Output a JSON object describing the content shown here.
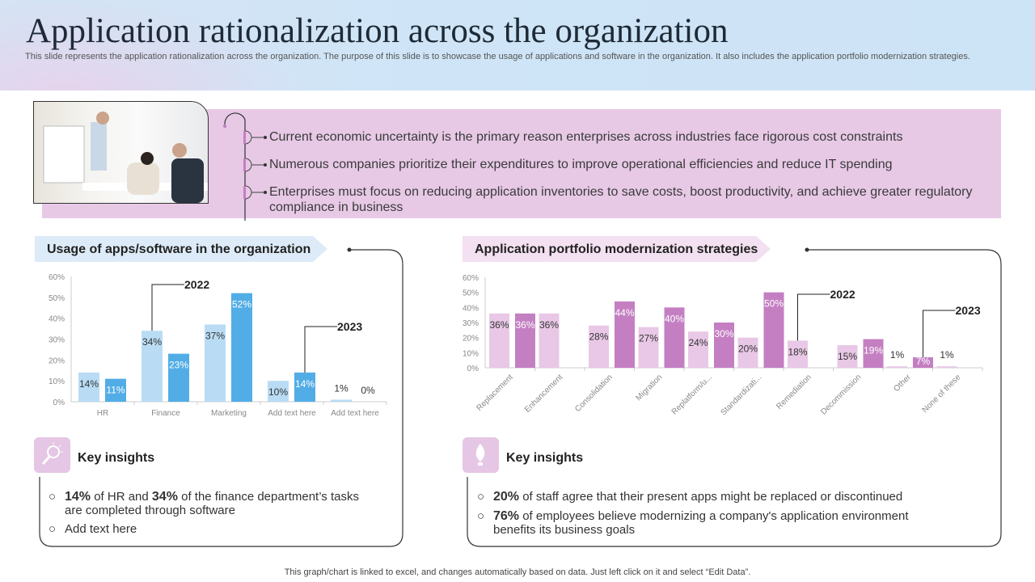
{
  "header": {
    "title": "Application rationalization across the organization",
    "subtitle": "This slide represents the application rationalization across the organization. The purpose of this slide is to showcase the usage of applications and software in the organization. It also includes the application portfolio modernization strategies."
  },
  "intro": {
    "bullets": [
      "Current economic uncertainty  is the primary reason enterprises across industries face rigorous cost constraints",
      "Numerous companies prioritize their expenditures to improve operational efficiencies and reduce IT spending",
      "Enterprises must focus on reducing application inventories to save costs, boost productivity, and achieve greater regulatory compliance in business"
    ]
  },
  "left_panel": {
    "heading": "Usage of apps/software in the organization",
    "insights_title": "Key insights",
    "insights": [
      {
        "b1": "14%",
        "t1": " of HR and ",
        "b2": "34%",
        "t2": " of the finance department’s tasks are completed through software"
      },
      {
        "text": "Add text here"
      }
    ]
  },
  "right_panel": {
    "heading": "Application portfolio modernization strategies",
    "insights_title": "Key insights",
    "insights": [
      {
        "b": "20%",
        "t": " of staff agree that their present apps might be replaced or discontinued"
      },
      {
        "b": "76%",
        "t": " of employees believe modernizing a company's application environment benefits its business goals"
      }
    ]
  },
  "footer": "This graph/chart is linked to excel,  and changes automatically based on data. Just left click on it and select “Edit Data”.",
  "chart_data": [
    {
      "type": "bar",
      "categories": [
        "HR",
        "Finance",
        "Marketing",
        "Add text here",
        "Add text here"
      ],
      "series": [
        {
          "name": "2022",
          "values": [
            14,
            34,
            37,
            10,
            1
          ],
          "color": "#b9dcf4"
        },
        {
          "name": "2023",
          "values": [
            11,
            23,
            52,
            14,
            0
          ],
          "color": "#52ade6"
        }
      ],
      "yticks": [
        "0%",
        "10%",
        "20%",
        "30%",
        "40%",
        "50%",
        "60%"
      ],
      "ylim": [
        0,
        60
      ],
      "unit": "%"
    },
    {
      "type": "bar",
      "categories": [
        "Replacement",
        "Enhancement",
        "Consolidation",
        "Migration",
        "Replatform/u...",
        "Standardizati...",
        "Remediation",
        "Decommission",
        "Other",
        "None of these"
      ],
      "series": [
        {
          "name": "2022",
          "values": [
            36,
            36,
            28,
            27,
            24,
            20,
            18,
            15,
            1,
            1
          ],
          "color": "#e8c8e6"
        },
        {
          "name": "2023",
          "values": [
            36,
            null,
            44,
            40,
            30,
            50,
            null,
            19,
            7,
            null
          ],
          "color": "#c47fc2"
        }
      ],
      "yticks": [
        "0%",
        "10%",
        "20%",
        "30%",
        "40%",
        "50%",
        "60%"
      ],
      "ylim": [
        0,
        60
      ],
      "unit": "%"
    }
  ]
}
